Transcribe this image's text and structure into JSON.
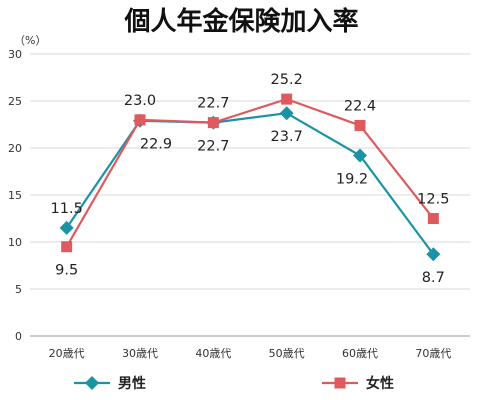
{
  "chart_data": {
    "type": "line",
    "title": "個人年金保険加入率",
    "unit_label": "（%）",
    "categories": [
      "20歳代",
      "30歳代",
      "40歳代",
      "50歳代",
      "60歳代",
      "70歳代"
    ],
    "ylim": [
      0,
      30
    ],
    "yticks": [
      "0",
      "5",
      "10",
      "15",
      "20",
      "25",
      "30"
    ],
    "grid": "horizontal",
    "legend_position": "bottom",
    "series": [
      {
        "name": "男性",
        "values": [
          11.5,
          22.9,
          22.7,
          23.7,
          19.2,
          8.7
        ],
        "labels": [
          "11.5",
          "22.9",
          "22.7",
          "23.7",
          "19.2",
          "8.7"
        ],
        "color": "#1a93a6",
        "marker": "diamond"
      },
      {
        "name": "女性",
        "values": [
          9.5,
          23.0,
          22.7,
          25.2,
          22.4,
          12.5
        ],
        "labels": [
          "9.5",
          "23.0",
          "22.7",
          "25.2",
          "22.4",
          "12.5"
        ],
        "color": "#de5a5f",
        "marker": "square"
      }
    ]
  }
}
